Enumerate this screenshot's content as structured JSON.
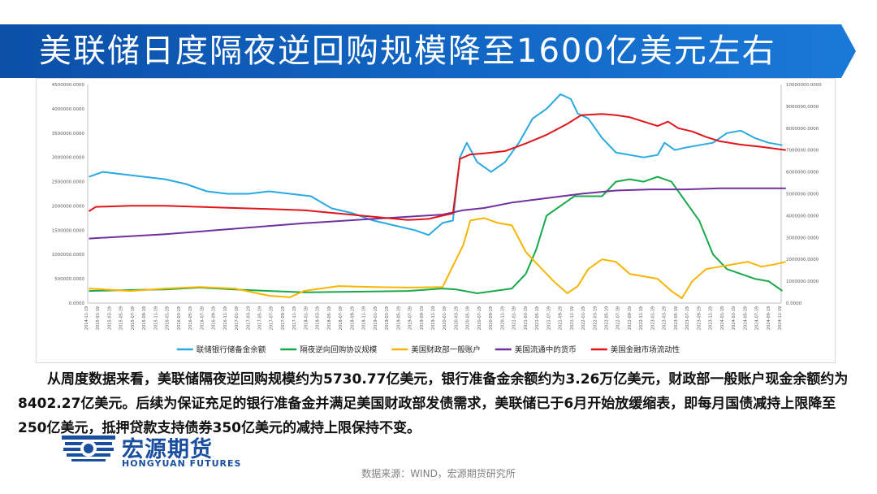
{
  "header": {
    "title": "美联储日度隔夜逆回购规模降至1600亿美元左右"
  },
  "body_text": "从周度数据来看，美联储隔夜逆回购规模约为5730.77亿美元，银行准备金余额约为3.26万亿美元，财政部一般账户现金余额约为8402.27亿美元。后续为保证充足的银行准备金并满足美国财政部发债需求，美联储已于6月开始放缓缩表，即每月国债减持上限降至250亿美元，抵押贷款支持债券350亿美元的减持上限保持不变。",
  "logo": {
    "cn": "宏源期货",
    "en": "HONGYUAN FUTURES"
  },
  "source": "数据来源：WIND，宏源期货研究所",
  "colors": {
    "banner": "#0b4fa8",
    "reserves": "#29a9e1",
    "rrp": "#19a84a",
    "tga": "#f7b500",
    "m2": "#7030a0",
    "liquidity": "#e0151b"
  },
  "chart_data": {
    "type": "line",
    "title": "",
    "x_ticks": [
      "2014-11-19",
      "2015-01-19",
      "2015-03-19",
      "2015-05-19",
      "2015-07-19",
      "2015-09-19",
      "2015-11-19",
      "2016-01-19",
      "2016-03-19",
      "2016-05-19",
      "2016-07-19",
      "2016-09-19",
      "2016-11-19",
      "2017-01-19",
      "2017-03-19",
      "2017-05-19",
      "2017-07-19",
      "2017-09-19",
      "2017-11-19",
      "2018-01-19",
      "2018-03-19",
      "2018-05-19",
      "2018-07-19",
      "2018-09-19",
      "2018-11-19",
      "2019-01-19",
      "2019-03-19",
      "2019-05-19",
      "2019-07-19",
      "2019-09-19",
      "2019-11-19",
      "2020-01-19",
      "2020-03-19",
      "2020-05-19",
      "2020-07-19",
      "2020-09-19",
      "2020-11-19",
      "2021-01-19",
      "2021-03-19",
      "2021-05-19",
      "2021-07-19",
      "2021-09-19",
      "2021-11-19",
      "2022-01-19",
      "2022-03-19",
      "2022-05-19",
      "2022-07-19",
      "2022-09-19",
      "2022-11-19",
      "2023-01-19",
      "2023-03-19",
      "2023-05-19",
      "2023-07-19",
      "2023-09-19",
      "2023-11-19",
      "2024-01-19",
      "2024-03-19",
      "2024-05-19",
      "2024-07-19",
      "2024-09-19",
      "2024-11-19"
    ],
    "y_left": {
      "min": 0,
      "max": 4500000,
      "ticks": [
        "0.0000",
        "500000.0000",
        "1000000.0000",
        "1500000.0000",
        "2000000.0000",
        "2500000.0000",
        "3000000.0000",
        "3500000.0000",
        "4000000.0000",
        "4500000.0000"
      ]
    },
    "y_right": {
      "min": 0,
      "max": 10000000,
      "ticks": [
        "0.0000",
        "1000000.0000",
        "2000000.0000",
        "3000000.0000",
        "4000000.0000",
        "5000000.0000",
        "6000000.0000",
        "7000000.0000",
        "8000000.0000",
        "9000000.0000",
        "10000000.0000"
      ]
    },
    "series": [
      {
        "name": "联储银行储备金余额",
        "axis": "left",
        "color": "#29a9e1",
        "x": [
          2014.9,
          2015.1,
          2015.4,
          2015.7,
          2016.0,
          2016.3,
          2016.6,
          2016.9,
          2017.2,
          2017.5,
          2017.8,
          2018.1,
          2018.4,
          2018.7,
          2019.0,
          2019.3,
          2019.6,
          2019.8,
          2020.0,
          2020.15,
          2020.25,
          2020.35,
          2020.5,
          2020.7,
          2020.9,
          2021.1,
          2021.3,
          2021.5,
          2021.7,
          2021.85,
          2021.95,
          2022.1,
          2022.3,
          2022.5,
          2022.7,
          2022.9,
          2023.1,
          2023.2,
          2023.35,
          2023.5,
          2023.7,
          2023.9,
          2024.1,
          2024.3,
          2024.5,
          2024.7,
          2024.9
        ],
        "y": [
          2600000,
          2700000,
          2650000,
          2600000,
          2550000,
          2450000,
          2300000,
          2250000,
          2250000,
          2300000,
          2250000,
          2200000,
          1950000,
          1850000,
          1700000,
          1600000,
          1500000,
          1400000,
          1650000,
          1700000,
          3000000,
          3300000,
          2900000,
          2700000,
          2900000,
          3300000,
          3800000,
          4000000,
          4300000,
          4200000,
          3900000,
          3800000,
          3400000,
          3100000,
          3050000,
          3000000,
          3050000,
          3300000,
          3150000,
          3200000,
          3250000,
          3300000,
          3500000,
          3550000,
          3400000,
          3300000,
          3250000
        ]
      },
      {
        "name": "隔夜逆向回购协议规模",
        "axis": "left",
        "color": "#19a84a",
        "x": [
          2014.9,
          2015.5,
          2016.0,
          2016.5,
          2017.0,
          2017.5,
          2018.0,
          2018.5,
          2019.0,
          2019.5,
          2020.0,
          2020.2,
          2020.5,
          2021.0,
          2021.2,
          2021.35,
          2021.5,
          2021.7,
          2021.9,
          2022.1,
          2022.3,
          2022.5,
          2022.7,
          2022.9,
          2023.1,
          2023.3,
          2023.5,
          2023.7,
          2023.9,
          2024.1,
          2024.3,
          2024.5,
          2024.7,
          2024.9
        ],
        "y": [
          250000,
          270000,
          280000,
          320000,
          280000,
          250000,
          220000,
          230000,
          240000,
          250000,
          300000,
          280000,
          200000,
          300000,
          600000,
          1100000,
          1800000,
          2000000,
          2200000,
          2200000,
          2200000,
          2500000,
          2550000,
          2500000,
          2600000,
          2500000,
          2100000,
          1700000,
          1000000,
          700000,
          600000,
          500000,
          450000,
          250000
        ]
      },
      {
        "name": "美国财政部一般账户",
        "axis": "left",
        "color": "#f7b500",
        "x": [
          2014.9,
          2015.5,
          2016.0,
          2016.5,
          2017.0,
          2017.5,
          2017.8,
          2018.0,
          2018.5,
          2019.0,
          2019.5,
          2020.0,
          2020.3,
          2020.4,
          2020.6,
          2020.8,
          2021.0,
          2021.2,
          2021.4,
          2021.6,
          2021.8,
          2021.95,
          2022.1,
          2022.3,
          2022.5,
          2022.7,
          2022.9,
          2023.1,
          2023.3,
          2023.45,
          2023.6,
          2023.8,
          2024.0,
          2024.2,
          2024.4,
          2024.6,
          2024.8,
          2024.95
        ],
        "y": [
          300000,
          250000,
          300000,
          330000,
          300000,
          150000,
          120000,
          250000,
          350000,
          330000,
          320000,
          330000,
          1200000,
          1700000,
          1750000,
          1650000,
          1600000,
          1050000,
          750000,
          450000,
          200000,
          350000,
          700000,
          900000,
          850000,
          600000,
          550000,
          500000,
          250000,
          100000,
          450000,
          700000,
          750000,
          800000,
          850000,
          750000,
          800000,
          850000
        ]
      },
      {
        "name": "美国流通中的货币",
        "axis": "right",
        "color": "#7030a0",
        "x": [
          2014.9,
          2016.0,
          2017.0,
          2018.0,
          2019.0,
          2020.0,
          2020.3,
          2020.6,
          2021.0,
          2021.5,
          2022.0,
          2022.5,
          2023.0,
          2023.5,
          2024.0,
          2024.5,
          2024.95
        ],
        "y": [
          2950000,
          3150000,
          3400000,
          3650000,
          3850000,
          4050000,
          4250000,
          4350000,
          4600000,
          4800000,
          5000000,
          5150000,
          5200000,
          5200000,
          5250000,
          5250000,
          5250000
        ]
      },
      {
        "name": "美国金融市场流动性",
        "axis": "right",
        "color": "#e0151b",
        "x": [
          2014.9,
          2015.0,
          2015.5,
          2016.0,
          2016.5,
          2017.0,
          2017.5,
          2018.0,
          2018.5,
          2019.0,
          2019.5,
          2019.8,
          2020.0,
          2020.15,
          2020.25,
          2020.4,
          2020.6,
          2020.9,
          2021.2,
          2021.5,
          2021.8,
          2022.0,
          2022.3,
          2022.5,
          2022.7,
          2022.9,
          2023.1,
          2023.25,
          2023.4,
          2023.6,
          2023.8,
          2024.0,
          2024.3,
          2024.6,
          2024.95
        ],
        "y": [
          4200000,
          4400000,
          4450000,
          4450000,
          4400000,
          4350000,
          4300000,
          4250000,
          4100000,
          3950000,
          3800000,
          3850000,
          4000000,
          4100000,
          6600000,
          6800000,
          6850000,
          6950000,
          7300000,
          7700000,
          8200000,
          8600000,
          8650000,
          8600000,
          8500000,
          8300000,
          8100000,
          8300000,
          8000000,
          7850000,
          7600000,
          7400000,
          7250000,
          7150000,
          7000000
        ]
      }
    ]
  }
}
